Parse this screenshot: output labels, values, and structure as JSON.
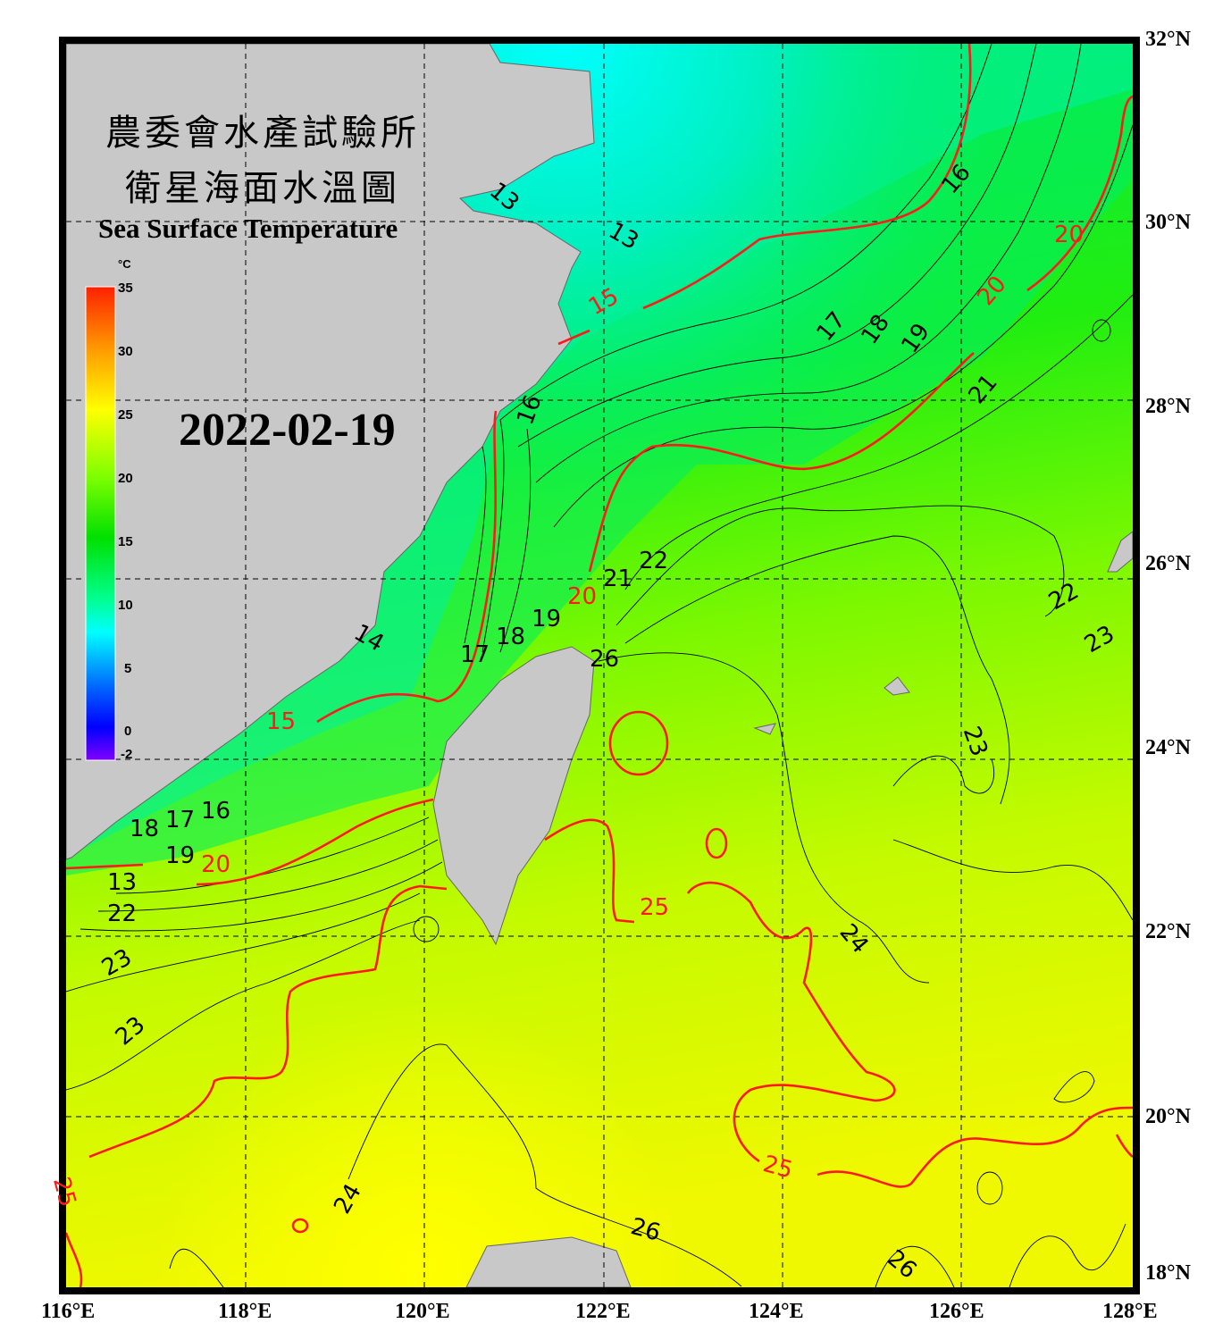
{
  "title": {
    "zh_line1": "農委會水產試驗所",
    "zh_line2": "衛星海面水溫圖",
    "en": "Sea Surface Temperature"
  },
  "date": "2022-02-19",
  "colorbar": {
    "unit": "°C",
    "labels": [
      "35",
      "30",
      "25",
      "20",
      "15",
      "10",
      "5",
      "0",
      "-2"
    ],
    "range": [
      -2,
      35
    ],
    "colors": [
      "#ff2000",
      "#ff9900",
      "#ffff00",
      "#a0ff00",
      "#00e000",
      "#00ff90",
      "#00ffff",
      "#0080ff",
      "#0000ff",
      "#8000ff"
    ]
  },
  "axes": {
    "lon_labels": [
      "116°E",
      "118°E",
      "120°E",
      "122°E",
      "124°E",
      "126°E",
      "128°E"
    ],
    "lat_labels": [
      "32°N",
      "30°N",
      "28°N",
      "26°N",
      "24°N",
      "22°N",
      "20°N",
      "18°N"
    ]
  },
  "contour_labels": {
    "red": [
      "15",
      "15",
      "20",
      "20",
      "20",
      "20",
      "25",
      "25",
      "25"
    ],
    "black": [
      "13",
      "13",
      "14",
      "16",
      "16",
      "17",
      "18",
      "19",
      "16",
      "17",
      "18",
      "19",
      "21",
      "22",
      "23",
      "17",
      "18",
      "19",
      "21",
      "22",
      "23",
      "24",
      "22",
      "23",
      "23",
      "24",
      "26",
      "26",
      "26",
      "13"
    ]
  },
  "colors": {
    "land": "#c8c8c8",
    "frame": "#000000",
    "major_contour": "#ff1a1a",
    "minor_contour": "#000000"
  }
}
